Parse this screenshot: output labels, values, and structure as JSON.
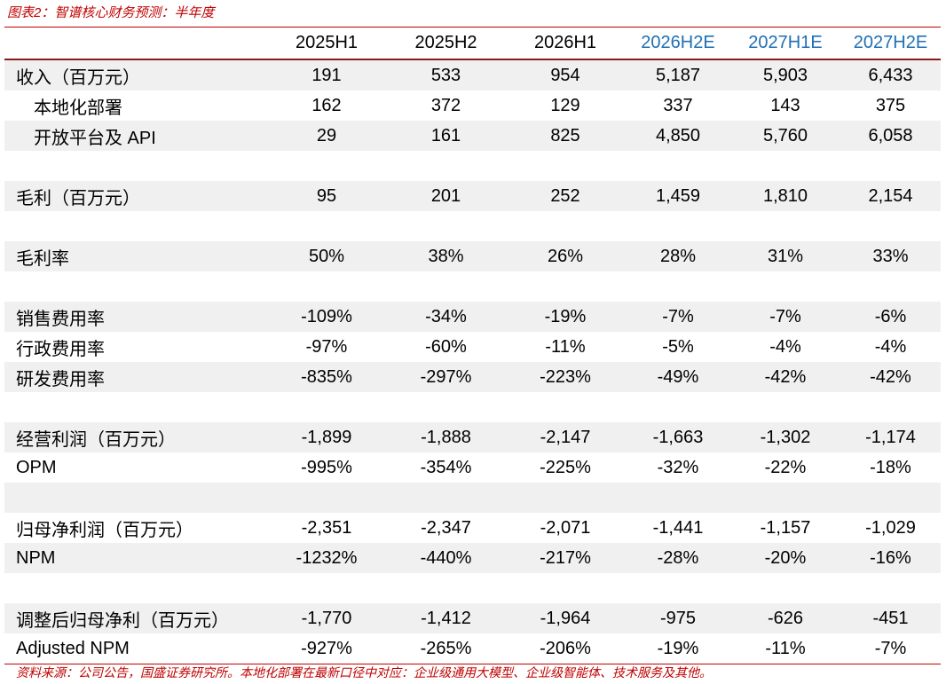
{
  "title": "图表2：智谱核心财务预测：半年度",
  "table": {
    "columns": [
      "2025H1",
      "2025H2",
      "2026H1",
      "2026H2E",
      "2027H1E",
      "2027H2E"
    ],
    "groups": [
      [
        {
          "label": "收入（百万元）",
          "values": [
            "191",
            "533",
            "954",
            "5,187",
            "5,903",
            "6,433"
          ],
          "items": [
            {
              "label": "本地化部署",
              "values": [
                "162",
                "372",
                "129",
                "337",
                "143",
                "375"
              ]
            },
            {
              "label": "开放平台及 API",
              "values": [
                "29",
                "161",
                "825",
                "4,850",
                "5,760",
                "6,058"
              ]
            }
          ]
        }
      ],
      [
        {
          "label": "毛利（百万元）",
          "values": [
            "95",
            "201",
            "252",
            "1,459",
            "1,810",
            "2,154"
          ]
        }
      ],
      [
        {
          "label": "毛利率",
          "values": [
            "50%",
            "38%",
            "26%",
            "28%",
            "31%",
            "33%"
          ]
        }
      ],
      [
        {
          "label": "销售费用率",
          "values": [
            "-109%",
            "-34%",
            "-19%",
            "-7%",
            "-7%",
            "-6%"
          ]
        },
        {
          "label": "行政费用率",
          "values": [
            "-97%",
            "-60%",
            "-11%",
            "-5%",
            "-4%",
            "-4%"
          ]
        },
        {
          "label": "研发费用率",
          "values": [
            "-835%",
            "-297%",
            "-223%",
            "-49%",
            "-42%",
            "-42%"
          ]
        }
      ],
      [
        {
          "label": "经营利润（百万元）",
          "values": [
            "-1,899",
            "-1,888",
            "-2,147",
            "-1,663",
            "-1,302",
            "-1,174"
          ]
        },
        {
          "label": "OPM",
          "values": [
            "-995%",
            "-354%",
            "-225%",
            "-32%",
            "-22%",
            "-18%"
          ]
        }
      ],
      [
        {
          "label": "归母净利润（百万元）",
          "values": [
            "-2,351",
            "-2,347",
            "-2,071",
            "-1,441",
            "-1,157",
            "-1,029"
          ]
        },
        {
          "label": "NPM",
          "values": [
            "-1232%",
            "-440%",
            "-217%",
            "-28%",
            "-20%",
            "-16%"
          ]
        }
      ],
      [
        {
          "label": "调整后归母净利（百万元）",
          "values": [
            "-1,770",
            "-1,412",
            "-1,964",
            "-975",
            "-626",
            "-451"
          ]
        },
        {
          "label": "Adjusted NPM",
          "values": [
            "-927%",
            "-265%",
            "-206%",
            "-19%",
            "-11%",
            "-7%"
          ]
        }
      ]
    ]
  },
  "source": "资料来源：公司公告，国盛证券研究所。本地化部署在最新口径中对应：企业级通用大模型、企业级智能体、技术服务及其他。"
}
